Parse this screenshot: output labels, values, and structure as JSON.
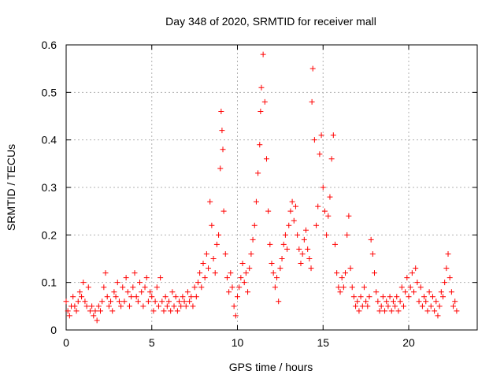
{
  "chart_data": {
    "type": "scatter",
    "title": "Day 348 of 2020, SRMTID for receiver mall",
    "xlabel": "GPS time / hours",
    "ylabel": "SRMTID / TECUs",
    "xlim": [
      0,
      24
    ],
    "ylim": [
      0,
      0.6
    ],
    "xticks": [
      0,
      5,
      10,
      15,
      20
    ],
    "yticks": [
      0,
      0.1,
      0.2,
      0.3,
      0.4,
      0.5,
      0.6
    ],
    "xtick_labels": [
      "0",
      "5",
      "10",
      "15",
      "20"
    ],
    "ytick_labels": [
      "0",
      "0.1",
      "0.2",
      "0.3",
      "0.4",
      "0.5",
      "0.6"
    ],
    "grid": true,
    "marker": "+",
    "color": "#ff0000",
    "series": [
      {
        "name": "SRMTID",
        "points": [
          [
            0.0,
            0.06
          ],
          [
            0.1,
            0.04
          ],
          [
            0.2,
            0.03
          ],
          [
            0.3,
            0.05
          ],
          [
            0.4,
            0.07
          ],
          [
            0.5,
            0.05
          ],
          [
            0.6,
            0.04
          ],
          [
            0.7,
            0.06
          ],
          [
            0.8,
            0.08
          ],
          [
            0.9,
            0.07
          ],
          [
            1.0,
            0.1
          ],
          [
            1.1,
            0.06
          ],
          [
            1.2,
            0.05
          ],
          [
            1.3,
            0.09
          ],
          [
            1.4,
            0.04
          ],
          [
            1.5,
            0.05
          ],
          [
            1.6,
            0.03
          ],
          [
            1.7,
            0.04
          ],
          [
            1.8,
            0.02
          ],
          [
            1.9,
            0.05
          ],
          [
            2.0,
            0.04
          ],
          [
            2.1,
            0.06
          ],
          [
            2.2,
            0.09
          ],
          [
            2.3,
            0.12
          ],
          [
            2.4,
            0.07
          ],
          [
            2.5,
            0.05
          ],
          [
            2.6,
            0.06
          ],
          [
            2.7,
            0.04
          ],
          [
            2.8,
            0.08
          ],
          [
            2.9,
            0.07
          ],
          [
            3.0,
            0.1
          ],
          [
            3.1,
            0.06
          ],
          [
            3.2,
            0.05
          ],
          [
            3.3,
            0.09
          ],
          [
            3.4,
            0.06
          ],
          [
            3.5,
            0.11
          ],
          [
            3.6,
            0.08
          ],
          [
            3.7,
            0.05
          ],
          [
            3.8,
            0.07
          ],
          [
            3.9,
            0.09
          ],
          [
            4.0,
            0.12
          ],
          [
            4.1,
            0.07
          ],
          [
            4.2,
            0.06
          ],
          [
            4.3,
            0.1
          ],
          [
            4.4,
            0.08
          ],
          [
            4.5,
            0.05
          ],
          [
            4.6,
            0.09
          ],
          [
            4.7,
            0.11
          ],
          [
            4.8,
            0.06
          ],
          [
            4.9,
            0.08
          ],
          [
            5.0,
            0.07
          ],
          [
            5.1,
            0.04
          ],
          [
            5.2,
            0.06
          ],
          [
            5.3,
            0.09
          ],
          [
            5.4,
            0.05
          ],
          [
            5.5,
            0.11
          ],
          [
            5.6,
            0.06
          ],
          [
            5.7,
            0.04
          ],
          [
            5.8,
            0.07
          ],
          [
            5.9,
            0.05
          ],
          [
            6.0,
            0.06
          ],
          [
            6.1,
            0.04
          ],
          [
            6.2,
            0.08
          ],
          [
            6.3,
            0.05
          ],
          [
            6.4,
            0.07
          ],
          [
            6.5,
            0.04
          ],
          [
            6.6,
            0.06
          ],
          [
            6.7,
            0.05
          ],
          [
            6.8,
            0.07
          ],
          [
            6.9,
            0.06
          ],
          [
            7.0,
            0.05
          ],
          [
            7.1,
            0.08
          ],
          [
            7.2,
            0.06
          ],
          [
            7.3,
            0.07
          ],
          [
            7.4,
            0.05
          ],
          [
            7.5,
            0.09
          ],
          [
            7.6,
            0.07
          ],
          [
            7.7,
            0.1
          ],
          [
            7.8,
            0.12
          ],
          [
            7.9,
            0.09
          ],
          [
            8.0,
            0.14
          ],
          [
            8.1,
            0.11
          ],
          [
            8.2,
            0.16
          ],
          [
            8.3,
            0.13
          ],
          [
            8.4,
            0.27
          ],
          [
            8.5,
            0.22
          ],
          [
            8.6,
            0.15
          ],
          [
            8.7,
            0.12
          ],
          [
            8.8,
            0.18
          ],
          [
            8.9,
            0.2
          ],
          [
            9.0,
            0.34
          ],
          [
            9.05,
            0.46
          ],
          [
            9.1,
            0.42
          ],
          [
            9.15,
            0.38
          ],
          [
            9.2,
            0.25
          ],
          [
            9.3,
            0.16
          ],
          [
            9.4,
            0.11
          ],
          [
            9.5,
            0.08
          ],
          [
            9.6,
            0.12
          ],
          [
            9.7,
            0.09
          ],
          [
            9.8,
            0.05
          ],
          [
            9.9,
            0.03
          ],
          [
            10.0,
            0.07
          ],
          [
            10.1,
            0.09
          ],
          [
            10.2,
            0.11
          ],
          [
            10.3,
            0.14
          ],
          [
            10.4,
            0.1
          ],
          [
            10.5,
            0.12
          ],
          [
            10.6,
            0.08
          ],
          [
            10.7,
            0.13
          ],
          [
            10.8,
            0.16
          ],
          [
            10.9,
            0.19
          ],
          [
            11.0,
            0.22
          ],
          [
            11.1,
            0.27
          ],
          [
            11.2,
            0.33
          ],
          [
            11.3,
            0.39
          ],
          [
            11.35,
            0.46
          ],
          [
            11.4,
            0.51
          ],
          [
            11.5,
            0.58
          ],
          [
            11.6,
            0.48
          ],
          [
            11.7,
            0.36
          ],
          [
            11.8,
            0.25
          ],
          [
            11.9,
            0.18
          ],
          [
            12.0,
            0.14
          ],
          [
            12.1,
            0.12
          ],
          [
            12.2,
            0.09
          ],
          [
            12.3,
            0.11
          ],
          [
            12.4,
            0.06
          ],
          [
            12.5,
            0.13
          ],
          [
            12.6,
            0.15
          ],
          [
            12.7,
            0.18
          ],
          [
            12.8,
            0.2
          ],
          [
            12.9,
            0.17
          ],
          [
            13.0,
            0.22
          ],
          [
            13.1,
            0.25
          ],
          [
            13.2,
            0.27
          ],
          [
            13.3,
            0.23
          ],
          [
            13.4,
            0.26
          ],
          [
            13.5,
            0.2
          ],
          [
            13.6,
            0.17
          ],
          [
            13.7,
            0.14
          ],
          [
            13.8,
            0.16
          ],
          [
            13.9,
            0.19
          ],
          [
            14.0,
            0.21
          ],
          [
            14.1,
            0.17
          ],
          [
            14.2,
            0.15
          ],
          [
            14.3,
            0.13
          ],
          [
            14.35,
            0.48
          ],
          [
            14.4,
            0.55
          ],
          [
            14.5,
            0.4
          ],
          [
            14.6,
            0.22
          ],
          [
            14.7,
            0.26
          ],
          [
            14.8,
            0.37
          ],
          [
            14.9,
            0.41
          ],
          [
            15.0,
            0.3
          ],
          [
            15.1,
            0.25
          ],
          [
            15.2,
            0.2
          ],
          [
            15.3,
            0.24
          ],
          [
            15.4,
            0.28
          ],
          [
            15.5,
            0.36
          ],
          [
            15.6,
            0.41
          ],
          [
            15.7,
            0.18
          ],
          [
            15.8,
            0.12
          ],
          [
            15.9,
            0.09
          ],
          [
            16.0,
            0.08
          ],
          [
            16.1,
            0.11
          ],
          [
            16.2,
            0.09
          ],
          [
            16.3,
            0.12
          ],
          [
            16.4,
            0.2
          ],
          [
            16.5,
            0.24
          ],
          [
            16.6,
            0.13
          ],
          [
            16.7,
            0.09
          ],
          [
            16.8,
            0.07
          ],
          [
            16.9,
            0.05
          ],
          [
            17.0,
            0.06
          ],
          [
            17.1,
            0.04
          ],
          [
            17.2,
            0.07
          ],
          [
            17.3,
            0.05
          ],
          [
            17.4,
            0.09
          ],
          [
            17.5,
            0.06
          ],
          [
            17.6,
            0.05
          ],
          [
            17.7,
            0.07
          ],
          [
            17.8,
            0.19
          ],
          [
            17.9,
            0.16
          ],
          [
            18.0,
            0.12
          ],
          [
            18.1,
            0.08
          ],
          [
            18.2,
            0.06
          ],
          [
            18.3,
            0.04
          ],
          [
            18.4,
            0.05
          ],
          [
            18.5,
            0.07
          ],
          [
            18.6,
            0.04
          ],
          [
            18.7,
            0.06
          ],
          [
            18.8,
            0.05
          ],
          [
            18.9,
            0.07
          ],
          [
            19.0,
            0.04
          ],
          [
            19.1,
            0.06
          ],
          [
            19.2,
            0.05
          ],
          [
            19.3,
            0.07
          ],
          [
            19.4,
            0.04
          ],
          [
            19.5,
            0.06
          ],
          [
            19.6,
            0.09
          ],
          [
            19.7,
            0.05
          ],
          [
            19.8,
            0.08
          ],
          [
            19.9,
            0.11
          ],
          [
            20.0,
            0.07
          ],
          [
            20.1,
            0.09
          ],
          [
            20.2,
            0.12
          ],
          [
            20.3,
            0.08
          ],
          [
            20.4,
            0.13
          ],
          [
            20.5,
            0.1
          ],
          [
            20.6,
            0.06
          ],
          [
            20.7,
            0.09
          ],
          [
            20.8,
            0.05
          ],
          [
            20.9,
            0.07
          ],
          [
            21.0,
            0.06
          ],
          [
            21.1,
            0.04
          ],
          [
            21.2,
            0.08
          ],
          [
            21.3,
            0.05
          ],
          [
            21.4,
            0.07
          ],
          [
            21.5,
            0.04
          ],
          [
            21.6,
            0.06
          ],
          [
            21.7,
            0.03
          ],
          [
            21.8,
            0.05
          ],
          [
            21.9,
            0.08
          ],
          [
            22.0,
            0.07
          ],
          [
            22.1,
            0.1
          ],
          [
            22.2,
            0.13
          ],
          [
            22.3,
            0.16
          ],
          [
            22.4,
            0.11
          ],
          [
            22.5,
            0.08
          ],
          [
            22.6,
            0.05
          ],
          [
            22.7,
            0.06
          ],
          [
            22.8,
            0.04
          ]
        ]
      }
    ]
  }
}
